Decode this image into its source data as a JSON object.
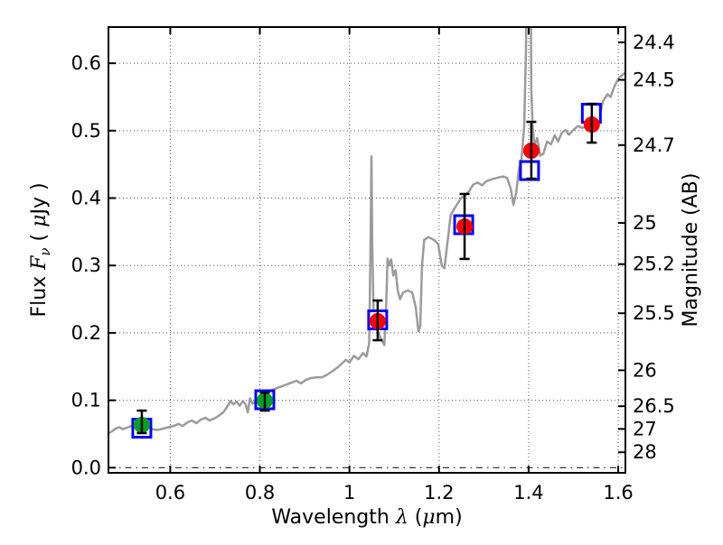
{
  "figure": {
    "background": "#ffffff",
    "axis_color": "#000000",
    "grid_color": "#555555",
    "zero_line_color": "#222222"
  },
  "chart_data": {
    "type": "line+scatter",
    "title": "",
    "xlabel": "Wavelength λ (μm)",
    "ylabel_left": "Flux Fν ( μJy )",
    "ylabel_right": "Magnitude (AB)",
    "xlabel_segments": [
      {
        "text": "Wavelength  ",
        "style": "normal"
      },
      {
        "text": "λ",
        "style": "math"
      },
      {
        "text": " (",
        "style": "normal"
      },
      {
        "text": "μ",
        "style": "math"
      },
      {
        "text": "m)",
        "style": "normal"
      }
    ],
    "ylabel_left_segments": [
      {
        "text": "Flux  ",
        "style": "normal"
      },
      {
        "text": "F",
        "style": "math"
      },
      {
        "text": "ν",
        "style": "math-sub"
      },
      {
        "text": "  ( ",
        "style": "normal"
      },
      {
        "text": "μ",
        "style": "math"
      },
      {
        "text": "Jy )",
        "style": "normal"
      }
    ],
    "ylabel_right_segments": [
      {
        "text": "Magnitude (AB)",
        "style": "normal"
      }
    ],
    "xlim": [
      0.462,
      1.616
    ],
    "ylim_flux": [
      -0.0076,
      0.6537
    ],
    "grid": {
      "style": "dotted",
      "x_values": [
        0.6,
        0.8,
        1.0,
        1.2,
        1.4,
        1.6
      ],
      "y_values": [
        0.1,
        0.2,
        0.3,
        0.4,
        0.5,
        0.6
      ]
    },
    "zero_line": {
      "flux": 0.0,
      "style": "dash-dot"
    },
    "x_ticks": {
      "values": [
        0.6,
        0.8,
        1.0,
        1.2,
        1.4,
        1.6
      ],
      "labels": [
        "0.6",
        "0.8",
        "1",
        "1.2",
        "1.4",
        "1.6"
      ]
    },
    "y_ticks_left": {
      "values": [
        0.0,
        0.1,
        0.2,
        0.3,
        0.4,
        0.5,
        0.6
      ],
      "labels": [
        "0.0",
        "0.1",
        "0.2",
        "0.3",
        "0.4",
        "0.5",
        "0.6"
      ]
    },
    "y_ticks_right": [
      {
        "label": "24.4",
        "flux": 0.631
      },
      {
        "label": "24.5",
        "flux": 0.5754
      },
      {
        "label": "24.7",
        "flux": 0.4786
      },
      {
        "label": "25",
        "flux": 0.3631
      },
      {
        "label": "25.2",
        "flux": 0.302
      },
      {
        "label": "25.5",
        "flux": 0.2291
      },
      {
        "label": "26",
        "flux": 0.1445
      },
      {
        "label": "26.5",
        "flux": 0.0912
      },
      {
        "label": "27",
        "flux": 0.0575
      },
      {
        "label": "28",
        "flux": 0.0229
      }
    ],
    "series": {
      "spectrum": {
        "name": "model-spectrum",
        "color": "#9b9b9b",
        "line_width": 2.5,
        "points": [
          [
            0.462,
            0.051
          ],
          [
            0.47,
            0.054
          ],
          [
            0.478,
            0.058
          ],
          [
            0.486,
            0.06
          ],
          [
            0.494,
            0.057
          ],
          [
            0.502,
            0.059
          ],
          [
            0.51,
            0.061
          ],
          [
            0.52,
            0.064
          ],
          [
            0.53,
            0.066
          ],
          [
            0.54,
            0.063
          ],
          [
            0.55,
            0.06
          ],
          [
            0.56,
            0.057
          ],
          [
            0.572,
            0.056
          ],
          [
            0.584,
            0.058
          ],
          [
            0.596,
            0.06
          ],
          [
            0.608,
            0.062
          ],
          [
            0.618,
            0.065
          ],
          [
            0.628,
            0.062
          ],
          [
            0.638,
            0.067
          ],
          [
            0.648,
            0.07
          ],
          [
            0.658,
            0.066
          ],
          [
            0.668,
            0.071
          ],
          [
            0.678,
            0.074
          ],
          [
            0.688,
            0.07
          ],
          [
            0.698,
            0.073
          ],
          [
            0.708,
            0.077
          ],
          [
            0.718,
            0.082
          ],
          [
            0.726,
            0.089
          ],
          [
            0.734,
            0.099
          ],
          [
            0.741,
            0.094
          ],
          [
            0.748,
            0.098
          ],
          [
            0.755,
            0.092
          ],
          [
            0.762,
            0.099
          ],
          [
            0.768,
            0.094
          ],
          [
            0.773,
            0.082
          ],
          [
            0.778,
            0.103
          ],
          [
            0.784,
            0.095
          ],
          [
            0.79,
            0.099
          ],
          [
            0.798,
            0.103
          ],
          [
            0.806,
            0.106
          ],
          [
            0.815,
            0.11
          ],
          [
            0.824,
            0.114
          ],
          [
            0.834,
            0.117
          ],
          [
            0.846,
            0.12
          ],
          [
            0.858,
            0.123
          ],
          [
            0.87,
            0.126
          ],
          [
            0.882,
            0.129
          ],
          [
            0.892,
            0.125
          ],
          [
            0.902,
            0.13
          ],
          [
            0.914,
            0.133
          ],
          [
            0.926,
            0.134
          ],
          [
            0.938,
            0.134
          ],
          [
            0.95,
            0.138
          ],
          [
            0.962,
            0.143
          ],
          [
            0.974,
            0.149
          ],
          [
            0.984,
            0.155
          ],
          [
            0.992,
            0.16
          ],
          [
            1.0,
            0.156
          ],
          [
            1.01,
            0.166
          ],
          [
            1.02,
            0.161
          ],
          [
            1.03,
            0.17
          ],
          [
            1.038,
            0.165
          ],
          [
            1.044,
            0.185
          ],
          [
            1.047,
            0.33
          ],
          [
            1.049,
            0.462
          ],
          [
            1.051,
            0.33
          ],
          [
            1.054,
            0.23
          ],
          [
            1.058,
            0.212
          ],
          [
            1.064,
            0.201
          ],
          [
            1.072,
            0.189
          ],
          [
            1.078,
            0.182
          ],
          [
            1.082,
            0.24
          ],
          [
            1.085,
            0.31
          ],
          [
            1.089,
            0.3
          ],
          [
            1.093,
            0.309
          ],
          [
            1.098,
            0.285
          ],
          [
            1.103,
            0.293
          ],
          [
            1.108,
            0.262
          ],
          [
            1.113,
            0.25
          ],
          [
            1.12,
            0.26
          ],
          [
            1.13,
            0.263
          ],
          [
            1.14,
            0.26
          ],
          [
            1.148,
            0.238
          ],
          [
            1.154,
            0.202
          ],
          [
            1.158,
            0.21
          ],
          [
            1.162,
            0.3
          ],
          [
            1.167,
            0.338
          ],
          [
            1.176,
            0.342
          ],
          [
            1.188,
            0.338
          ],
          [
            1.198,
            0.332
          ],
          [
            1.206,
            0.3
          ],
          [
            1.212,
            0.296
          ],
          [
            1.219,
            0.335
          ],
          [
            1.226,
            0.375
          ],
          [
            1.236,
            0.386
          ],
          [
            1.248,
            0.399
          ],
          [
            1.258,
            0.404
          ],
          [
            1.268,
            0.411
          ],
          [
            1.276,
            0.42
          ],
          [
            1.286,
            0.423
          ],
          [
            1.296,
            0.419
          ],
          [
            1.306,
            0.425
          ],
          [
            1.318,
            0.428
          ],
          [
            1.33,
            0.43
          ],
          [
            1.342,
            0.432
          ],
          [
            1.352,
            0.43
          ],
          [
            1.36,
            0.414
          ],
          [
            1.366,
            0.39
          ],
          [
            1.372,
            0.407
          ],
          [
            1.378,
            0.441
          ],
          [
            1.384,
            0.458
          ],
          [
            1.39,
            0.505
          ],
          [
            1.394,
            0.62
          ],
          [
            1.397,
            0.9
          ],
          [
            1.403,
            0.9
          ],
          [
            1.406,
            0.56
          ],
          [
            1.409,
            0.505
          ],
          [
            1.413,
            0.478
          ],
          [
            1.419,
            0.489
          ],
          [
            1.426,
            0.463
          ],
          [
            1.433,
            0.466
          ],
          [
            1.441,
            0.484
          ],
          [
            1.45,
            0.48
          ],
          [
            1.458,
            0.493
          ],
          [
            1.466,
            0.484
          ],
          [
            1.474,
            0.497
          ],
          [
            1.482,
            0.501
          ],
          [
            1.49,
            0.494
          ],
          [
            1.5,
            0.501
          ],
          [
            1.51,
            0.507
          ],
          [
            1.52,
            0.504
          ],
          [
            1.53,
            0.507
          ],
          [
            1.541,
            0.505
          ],
          [
            1.55,
            0.501
          ],
          [
            1.557,
            0.517
          ],
          [
            1.566,
            0.544
          ],
          [
            1.576,
            0.554
          ],
          [
            1.583,
            0.55
          ],
          [
            1.591,
            0.565
          ],
          [
            1.601,
            0.578
          ],
          [
            1.61,
            0.583
          ],
          [
            1.616,
            0.586
          ]
        ]
      },
      "model_photometry": {
        "name": "model-photometry",
        "marker": "open-square",
        "color": "#0000FF",
        "fill": "#FFFFFF",
        "size": 20,
        "points": [
          [
            0.5365,
            0.0586
          ],
          [
            0.811,
            0.1008
          ],
          [
            1.063,
            0.2193
          ],
          [
            1.255,
            0.3605
          ],
          [
            1.402,
            0.4408
          ],
          [
            1.54,
            0.5258
          ]
        ]
      },
      "observed_photometry": {
        "name": "observed-photometry",
        "marker": "filled-circle",
        "radius": 9,
        "errorbar_color": "#000000",
        "points": [
          {
            "x": 0.5365,
            "y": 0.0633,
            "err_lo": 0.0513,
            "err_hi": 0.0847,
            "color": "#00A221"
          },
          {
            "x": 0.811,
            "y": 0.0995,
            "err_lo": 0.0847,
            "err_hi": 0.1115,
            "color": "#00A221"
          },
          {
            "x": 1.063,
            "y": 0.2173,
            "err_lo": 0.1891,
            "err_hi": 0.248,
            "color": "#FF0000"
          },
          {
            "x": 1.257,
            "y": 0.3578,
            "err_lo": 0.3097,
            "err_hi": 0.4061,
            "color": "#FF0000"
          },
          {
            "x": 1.406,
            "y": 0.4703,
            "err_lo": 0.4288,
            "err_hi": 0.5131,
            "color": "#FF0000"
          },
          {
            "x": 1.541,
            "y": 0.5091,
            "err_lo": 0.4823,
            "err_hi": 0.5399,
            "color": "#FF0000"
          }
        ]
      }
    }
  }
}
